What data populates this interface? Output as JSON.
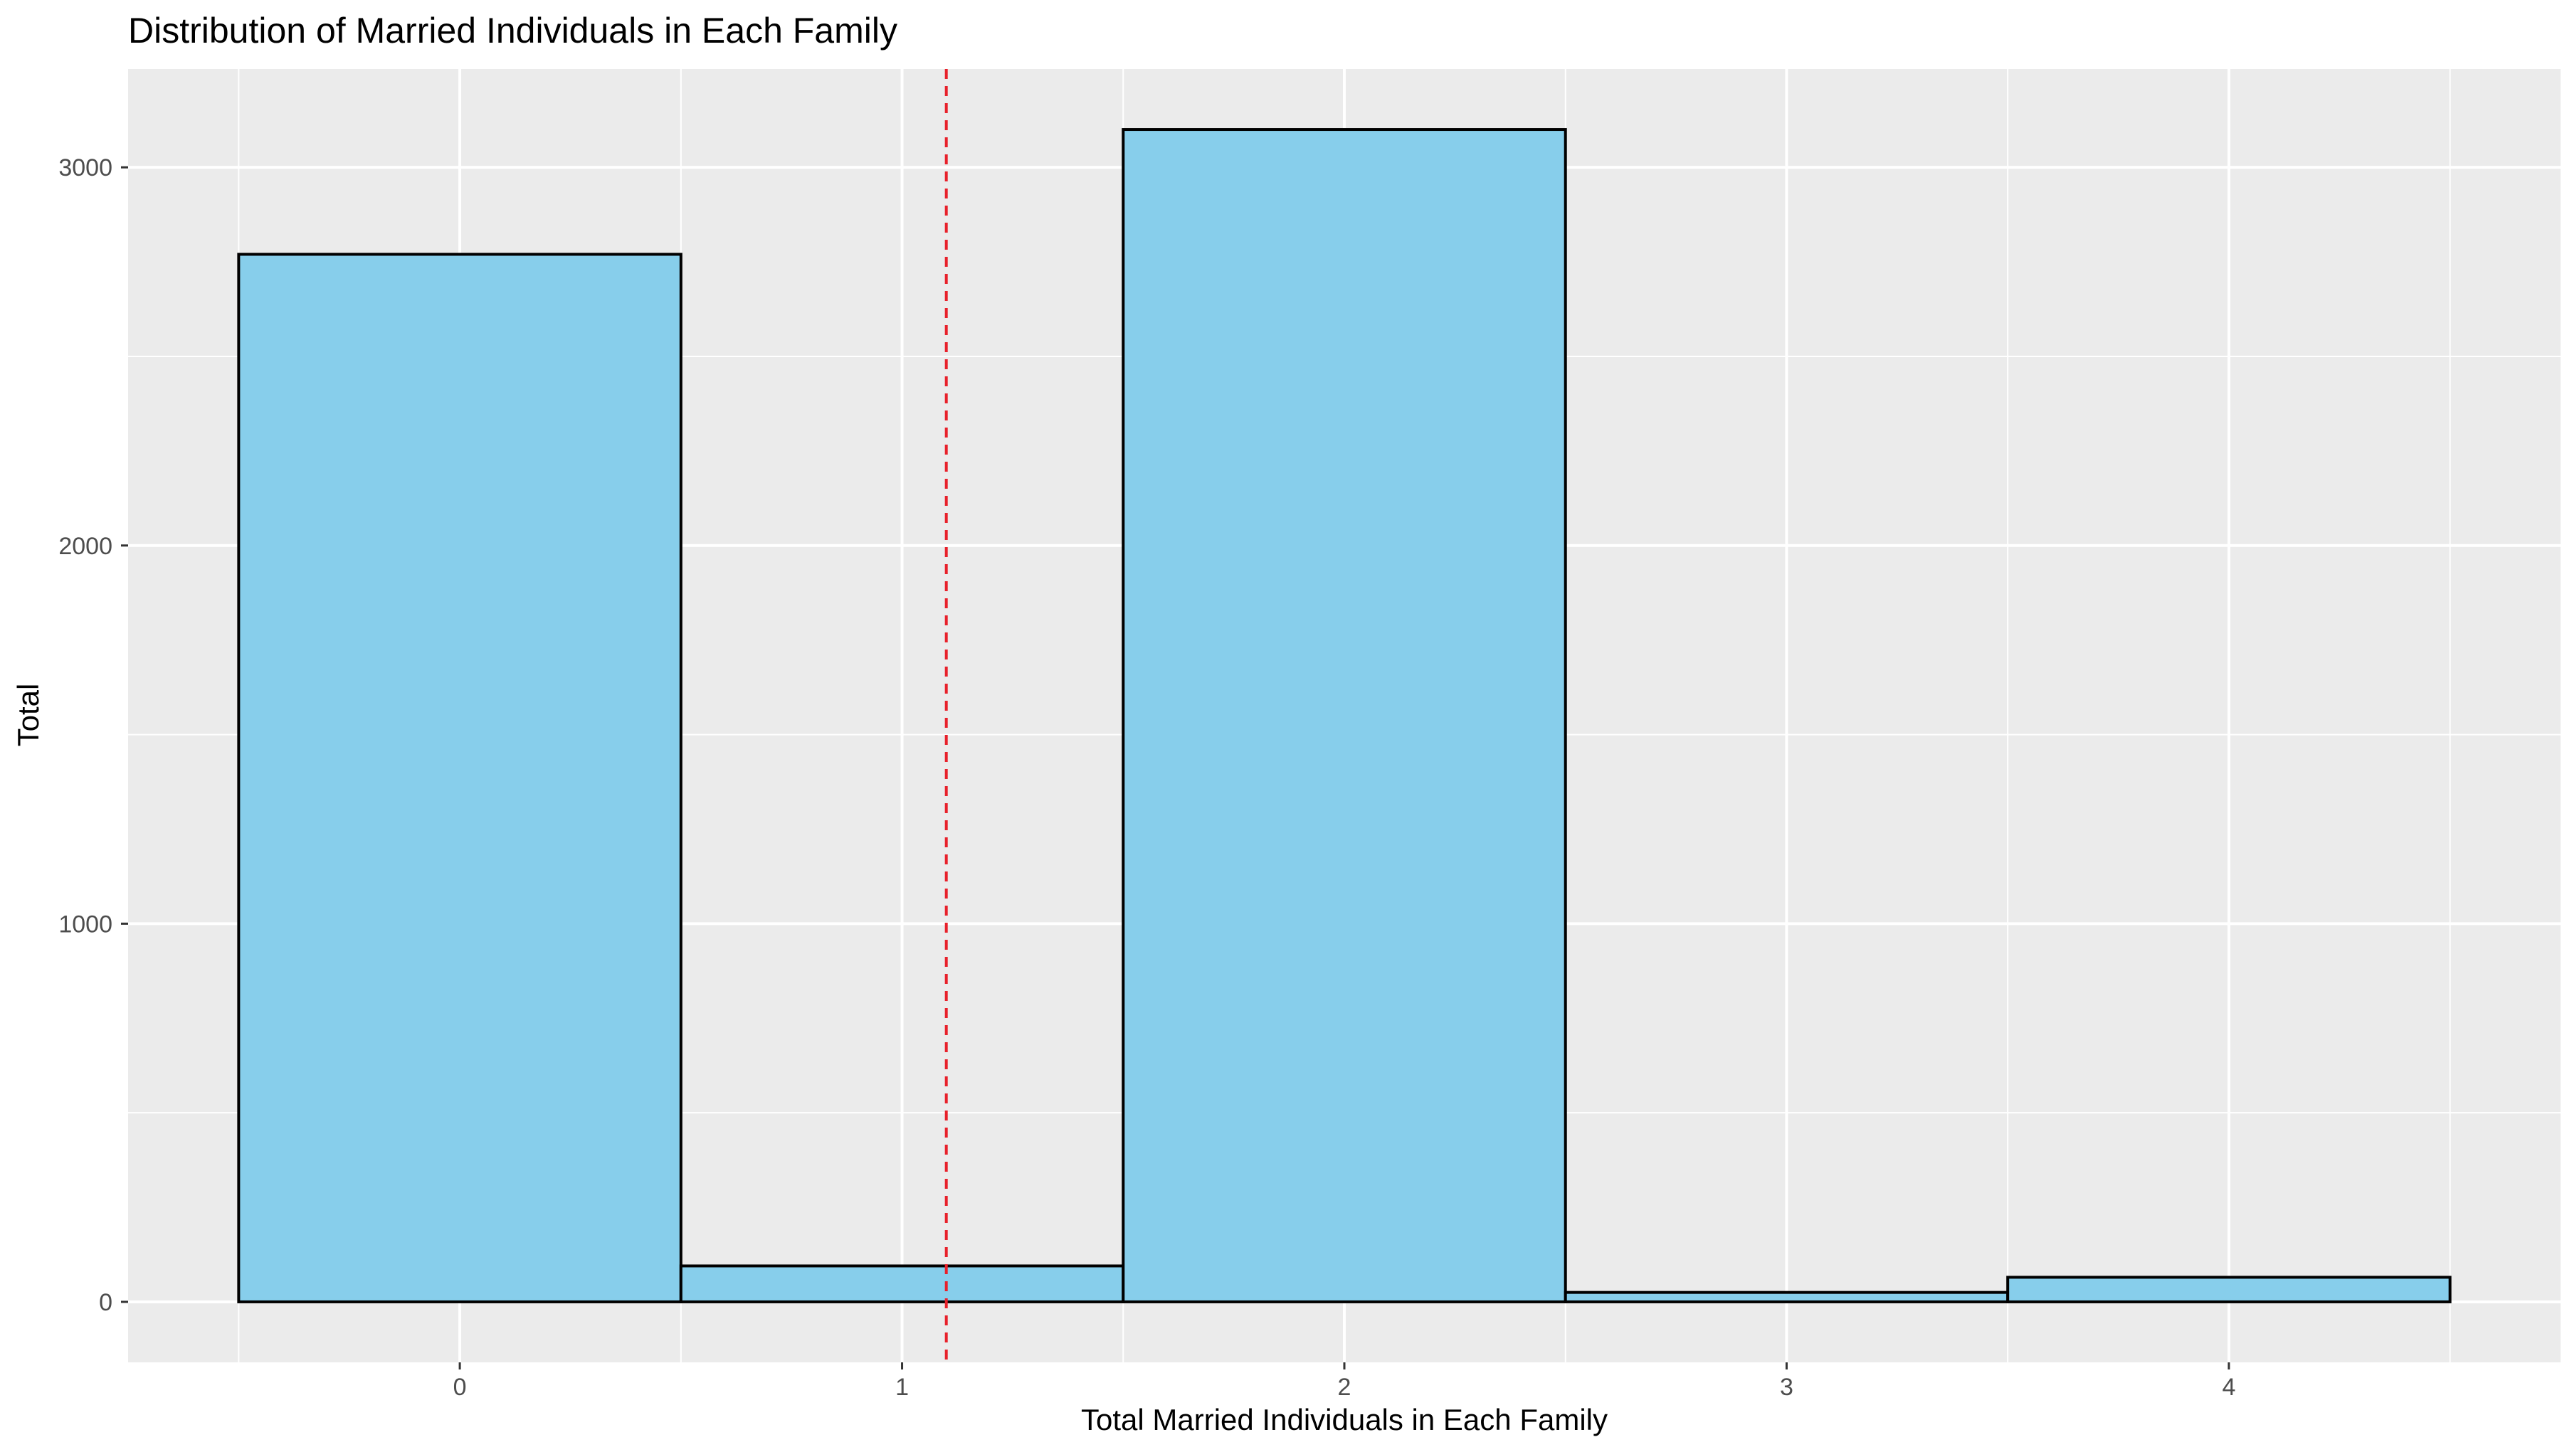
{
  "chart_data": {
    "type": "bar",
    "title": "Distribution of Married Individuals in Each Family",
    "xlabel": "Total Married Individuals in Each Family",
    "ylabel": "Total",
    "categories": [
      "0",
      "1",
      "2",
      "3",
      "4"
    ],
    "x": [
      0,
      1,
      2,
      3,
      4
    ],
    "values": [
      2770,
      95,
      3100,
      25,
      65
    ],
    "bin_width": 1,
    "xlim": [
      -0.75,
      4.75
    ],
    "ylim": [
      -160,
      3260
    ],
    "x_ticks": [
      0,
      1,
      2,
      3,
      4
    ],
    "y_ticks": [
      0,
      1000,
      2000,
      3000
    ],
    "reference_line": {
      "x": 1.1,
      "style": "dashed",
      "color": "#e8202a"
    },
    "grid": true,
    "legend": "none",
    "colors": {
      "bar_fill": "#87ceeb",
      "bar_stroke": "#000000",
      "panel_background": "#ebebeb",
      "grid": "#ffffff"
    }
  }
}
